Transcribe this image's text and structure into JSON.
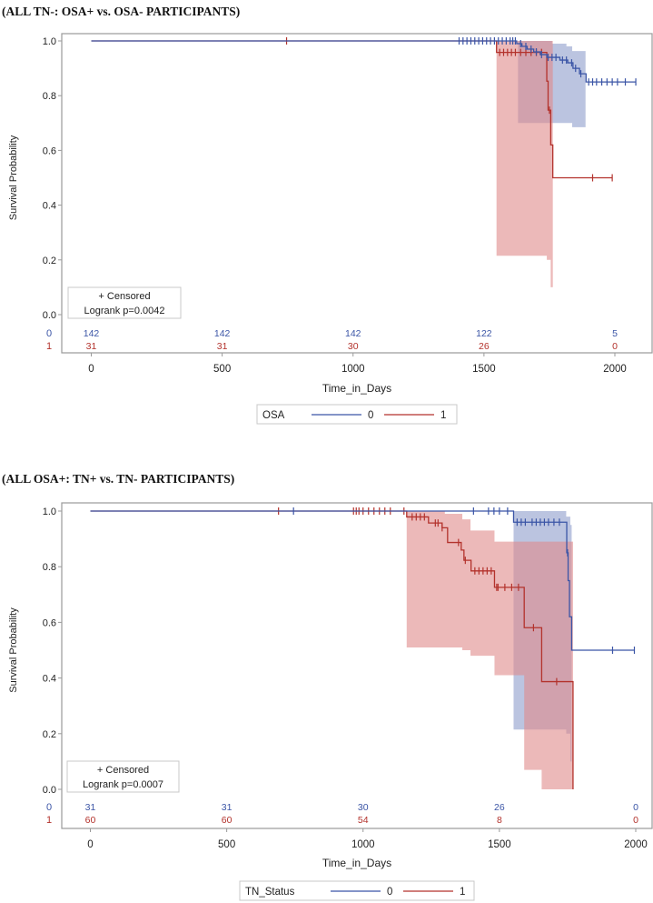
{
  "colors": {
    "group0": "#3b55a6",
    "group1": "#b3322c",
    "ci0": "#8e9dcc",
    "ci1": "#e08a8a",
    "frame": "#9a9a9a"
  },
  "chart_data": [
    {
      "type": "line",
      "title": "(ALL TN-: OSA+ vs. OSA- PARTICIPANTS)",
      "xlabel": "Time_in_Days",
      "ylabel": "Survival Probability",
      "xlim": [
        0,
        2000
      ],
      "ylim": [
        0,
        1
      ],
      "xticks": [
        "0",
        "500",
        "1000",
        "1500",
        "2000"
      ],
      "yticks": [
        "0.0",
        "0.2",
        "0.4",
        "0.6",
        "0.8",
        "1.0"
      ],
      "inset": {
        "censored": "+ Censored",
        "logrank": "Logrank p=0.0042"
      },
      "legend": {
        "title": "OSA",
        "position": "bottom"
      },
      "series": [
        {
          "name": "0",
          "steps": [
            [
              0,
              1
            ],
            [
              1625,
              0.99
            ],
            [
              1645,
              0.98
            ],
            [
              1665,
              0.97
            ],
            [
              1690,
              0.96
            ],
            [
              1715,
              0.95
            ],
            [
              1740,
              0.94
            ],
            [
              1790,
              0.93
            ],
            [
              1820,
              0.92
            ],
            [
              1840,
              0.9
            ],
            [
              1865,
              0.88
            ],
            [
              1890,
              0.85
            ]
          ],
          "end": 2080,
          "censored": [
            1405,
            1420,
            1435,
            1450,
            1465,
            1480,
            1495,
            1510,
            1525,
            1540,
            1555,
            1570,
            1585,
            1600,
            1610,
            1620,
            1640,
            1660,
            1680,
            1700,
            1720,
            1745,
            1760,
            1775,
            1800,
            1815,
            1835,
            1850,
            1870,
            1900,
            1915,
            1930,
            1950,
            1970,
            1990,
            2010,
            2040,
            2080
          ],
          "ci": [
            [
              1630,
              0.7,
              1.0
            ],
            [
              1760,
              0.7,
              0.99
            ],
            [
              1815,
              0.7,
              0.98
            ],
            [
              1837,
              0.685,
              0.963
            ]
          ],
          "ci_end": 1888
        },
        {
          "name": "1",
          "steps": [
            [
              0,
              1
            ],
            [
              1548,
              0.958
            ],
            [
              1740,
              0.853
            ],
            [
              1745,
              0.747
            ],
            [
              1755,
              0.62
            ],
            [
              1763,
              0.5
            ]
          ],
          "end": 1990,
          "censored": [
            746,
            1560,
            1575,
            1590,
            1605,
            1620,
            1640,
            1660,
            1680,
            1700,
            1720,
            1750,
            1915,
            1990
          ],
          "ci": [
            [
              1548,
              0.215,
              1.0
            ],
            [
              1740,
              0.2,
              1.0
            ],
            [
              1755,
              0.1,
              1.0
            ]
          ],
          "ci_end": 1763
        }
      ],
      "at_risk": {
        "times": [
          0,
          500,
          1000,
          1500,
          2000
        ],
        "rows": [
          {
            "group": "0",
            "values": [
              "142",
              "142",
              "142",
              "122",
              "5"
            ]
          },
          {
            "group": "1",
            "values": [
              "31",
              "31",
              "30",
              "26",
              "0"
            ]
          }
        ]
      }
    },
    {
      "type": "line",
      "title": "(ALL OSA+: TN+ vs. TN- PARTICIPANTS)",
      "xlabel": "Time_in_Days",
      "ylabel": "Survival Probability",
      "xlim": [
        0,
        2000
      ],
      "ylim": [
        0,
        1
      ],
      "xticks": [
        "0",
        "500",
        "1000",
        "1500",
        "2000"
      ],
      "yticks": [
        "0.0",
        "0.2",
        "0.4",
        "0.6",
        "0.8",
        "1.0"
      ],
      "inset": {
        "censored": "+ Censored",
        "logrank": "Logrank p=0.0007"
      },
      "legend": {
        "title": "TN_Status",
        "position": "bottom"
      },
      "series": [
        {
          "name": "0",
          "steps": [
            [
              0,
              1
            ],
            [
              1552,
              0.96
            ],
            [
              1747,
              0.85
            ],
            [
              1752,
              0.75
            ],
            [
              1757,
              0.62
            ],
            [
              1765,
              0.5
            ]
          ],
          "end": 1995,
          "censored": [
            745,
            1405,
            1460,
            1480,
            1500,
            1530,
            1565,
            1580,
            1595,
            1620,
            1635,
            1650,
            1665,
            1680,
            1700,
            1720,
            1750,
            1915,
            1995
          ],
          "ci": [
            [
              1552,
              0.215,
              1.0
            ],
            [
              1745,
              0.2,
              0.98
            ],
            [
              1760,
              0.1,
              0.95
            ]
          ],
          "ci_end": 1765
        },
        {
          "name": "1",
          "steps": [
            [
              0,
              1
            ],
            [
              1160,
              0.979
            ],
            [
              1240,
              0.957
            ],
            [
              1290,
              0.94
            ],
            [
              1310,
              0.887
            ],
            [
              1360,
              0.86
            ],
            [
              1370,
              0.823
            ],
            [
              1396,
              0.785
            ],
            [
              1482,
              0.726
            ],
            [
              1591,
              0.581
            ],
            [
              1655,
              0.387
            ],
            [
              1770,
              0
            ]
          ],
          "end": 1770,
          "censored": [
            690,
            965,
            975,
            985,
            1000,
            1020,
            1040,
            1060,
            1080,
            1100,
            1150,
            1180,
            1195,
            1210,
            1225,
            1265,
            1275,
            1290,
            1350,
            1375,
            1410,
            1425,
            1440,
            1455,
            1470,
            1490,
            1495,
            1520,
            1545,
            1570,
            1625,
            1710
          ],
          "ci": [
            [
              1160,
              0.51,
              1.0
            ],
            [
              1300,
              0.51,
              0.99
            ],
            [
              1364,
              0.5,
              0.97
            ],
            [
              1394,
              0.48,
              0.93
            ],
            [
              1482,
              0.41,
              0.89
            ],
            [
              1591,
              0.07,
              0.89
            ],
            [
              1655,
              0,
              0.89
            ]
          ],
          "ci_end": 1770
        }
      ],
      "at_risk": {
        "times": [
          0,
          500,
          1000,
          1500,
          2000
        ],
        "rows": [
          {
            "group": "0",
            "values": [
              "31",
              "31",
              "30",
              "26",
              "0"
            ]
          },
          {
            "group": "1",
            "values": [
              "60",
              "60",
              "54",
              "8",
              "0"
            ]
          }
        ]
      }
    }
  ]
}
